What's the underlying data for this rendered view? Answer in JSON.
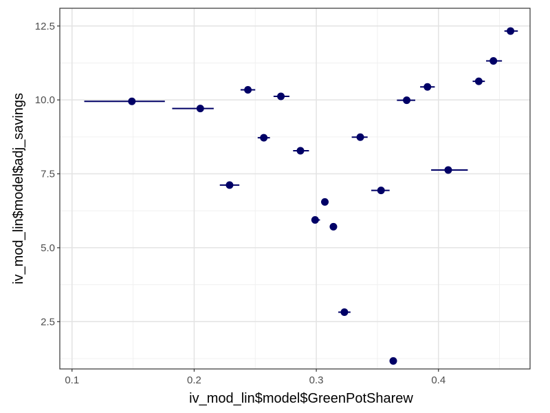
{
  "chart_data": {
    "type": "scatter",
    "xlabel": "iv_mod_lin$model$GreenPotSharew",
    "ylabel": "iv_mod_lin$model$adj_savings",
    "xlim": [
      0.09,
      0.475
    ],
    "ylim": [
      0.9,
      13.1
    ],
    "x_ticks": [
      0.1,
      0.2,
      0.3,
      0.4
    ],
    "x_tick_labels": [
      "0.1",
      "0.2",
      "0.3",
      "0.4"
    ],
    "y_ticks": [
      2.5,
      5.0,
      7.5,
      10.0,
      12.5
    ],
    "y_tick_labels": [
      "2.5",
      "5.0",
      "7.5",
      "10.0",
      "12.5"
    ],
    "grid": true,
    "point_color": "#000066",
    "points": [
      {
        "x": 0.149,
        "y": 9.95,
        "xmin": 0.11,
        "xmax": 0.176
      },
      {
        "x": 0.205,
        "y": 9.71,
        "xmin": 0.182,
        "xmax": 0.216
      },
      {
        "x": 0.229,
        "y": 7.12,
        "xmin": 0.221,
        "xmax": 0.237
      },
      {
        "x": 0.244,
        "y": 10.34,
        "xmin": 0.238,
        "xmax": 0.25
      },
      {
        "x": 0.257,
        "y": 8.72,
        "xmin": 0.252,
        "xmax": 0.262
      },
      {
        "x": 0.271,
        "y": 10.12,
        "xmin": 0.265,
        "xmax": 0.278
      },
      {
        "x": 0.287,
        "y": 8.28,
        "xmin": 0.281,
        "xmax": 0.294
      },
      {
        "x": 0.299,
        "y": 5.94,
        "xmin": 0.296,
        "xmax": 0.303
      },
      {
        "x": 0.307,
        "y": 6.55,
        "xmin": 0.307,
        "xmax": 0.307
      },
      {
        "x": 0.314,
        "y": 5.71,
        "xmin": 0.314,
        "xmax": 0.314
      },
      {
        "x": 0.323,
        "y": 2.82,
        "xmin": 0.318,
        "xmax": 0.328
      },
      {
        "x": 0.336,
        "y": 8.74,
        "xmin": 0.329,
        "xmax": 0.342
      },
      {
        "x": 0.353,
        "y": 6.94,
        "xmin": 0.345,
        "xmax": 0.36
      },
      {
        "x": 0.363,
        "y": 1.17,
        "xmin": 0.363,
        "xmax": 0.363
      },
      {
        "x": 0.374,
        "y": 9.99,
        "xmin": 0.366,
        "xmax": 0.381
      },
      {
        "x": 0.391,
        "y": 10.44,
        "xmin": 0.385,
        "xmax": 0.397
      },
      {
        "x": 0.408,
        "y": 7.63,
        "xmin": 0.394,
        "xmax": 0.424
      },
      {
        "x": 0.433,
        "y": 10.63,
        "xmin": 0.428,
        "xmax": 0.438
      },
      {
        "x": 0.445,
        "y": 11.32,
        "xmin": 0.439,
        "xmax": 0.452
      },
      {
        "x": 0.459,
        "y": 12.33,
        "xmin": 0.454,
        "xmax": 0.465
      }
    ]
  }
}
